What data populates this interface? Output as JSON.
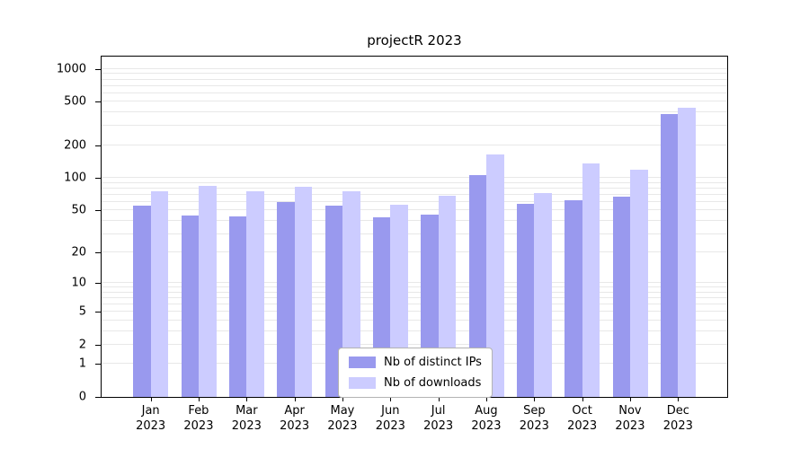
{
  "chart_data": {
    "type": "bar",
    "title": "projectR 2023",
    "scale": "log1p",
    "ylim": [
      0,
      1500
    ],
    "grid": true,
    "legend_position": "bottom-center",
    "xlabel": "",
    "ylabel": "",
    "categories": [
      "Jan",
      "Feb",
      "Mar",
      "Apr",
      "May",
      "Jun",
      "Jul",
      "Aug",
      "Sep",
      "Oct",
      "Nov",
      "Dec"
    ],
    "year_label": "2023",
    "yticks": [
      0,
      1,
      2,
      5,
      10,
      20,
      50,
      100,
      200,
      500,
      1000
    ],
    "grid_values": [
      1,
      2,
      3,
      4,
      5,
      6,
      7,
      8,
      9,
      10,
      20,
      30,
      40,
      50,
      60,
      70,
      80,
      90,
      100,
      200,
      300,
      400,
      500,
      600,
      700,
      800,
      900,
      1000
    ],
    "series": [
      {
        "name": "Nb of distinct IPs",
        "color": "#9999ee",
        "values": [
          55,
          45,
          44,
          60,
          55,
          43,
          46,
          107,
          58,
          62,
          67,
          390
        ]
      },
      {
        "name": "Nb of downloads",
        "color": "#ccccff",
        "values": [
          75,
          85,
          75,
          82,
          75,
          56,
          68,
          165,
          72,
          135,
          120,
          440
        ]
      }
    ]
  }
}
